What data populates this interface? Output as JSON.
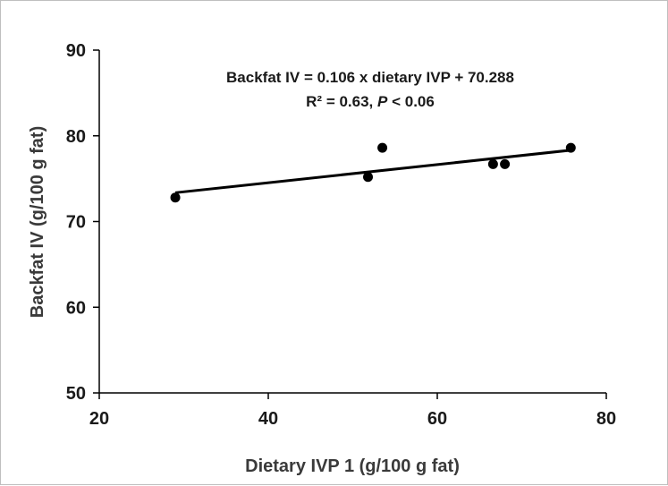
{
  "chart_data": {
    "type": "scatter",
    "xlabel": "Dietary IVP 1 (g/100 g fat)",
    "ylabel": "Backfat IV (g/100 g fat)",
    "xlim": [
      20,
      80
    ],
    "ylim": [
      50,
      90
    ],
    "xticks": [
      "20",
      "40",
      "60",
      "80"
    ],
    "yticks": [
      "50",
      "60",
      "70",
      "80",
      "90"
    ],
    "grid": false,
    "points": [
      {
        "x": 29.0,
        "y": 72.8
      },
      {
        "x": 51.8,
        "y": 75.2
      },
      {
        "x": 53.5,
        "y": 78.6
      },
      {
        "x": 66.6,
        "y": 76.7
      },
      {
        "x": 68.0,
        "y": 76.7
      },
      {
        "x": 75.8,
        "y": 78.6
      }
    ],
    "trendline": {
      "slope": 0.106,
      "intercept": 70.288,
      "x_range": [
        29.0,
        75.8
      ]
    },
    "annotation": {
      "line1": "Backfat IV = 0.106 x dietary IVP + 70.288",
      "line2_prefix": "R² = 0.63, ",
      "line2_p": "P",
      "line2_suffix": " < 0.06"
    },
    "colors": {
      "marker": "#000000",
      "axis": "#000000",
      "line": "#000000"
    }
  }
}
